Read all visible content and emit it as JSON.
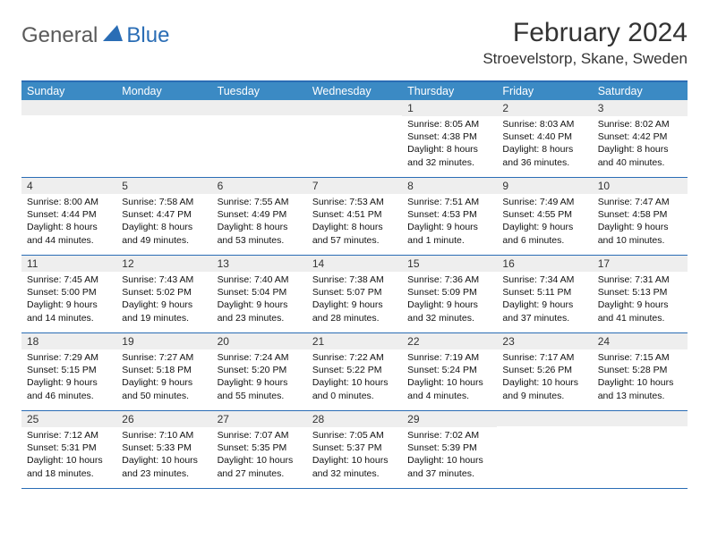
{
  "logo": {
    "general": "General",
    "blue": "Blue"
  },
  "title": "February 2024",
  "location": "Stroevelstorp, Skane, Sweden",
  "colors": {
    "header_bg": "#3b8ac4",
    "header_border": "#2a6db5",
    "daynum_bg": "#eeeeee",
    "text": "#111111"
  },
  "day_names": [
    "Sunday",
    "Monday",
    "Tuesday",
    "Wednesday",
    "Thursday",
    "Friday",
    "Saturday"
  ],
  "weeks": [
    [
      null,
      null,
      null,
      null,
      {
        "n": "1",
        "sr": "8:05 AM",
        "ss": "4:38 PM",
        "dl": "8 hours and 32 minutes."
      },
      {
        "n": "2",
        "sr": "8:03 AM",
        "ss": "4:40 PM",
        "dl": "8 hours and 36 minutes."
      },
      {
        "n": "3",
        "sr": "8:02 AM",
        "ss": "4:42 PM",
        "dl": "8 hours and 40 minutes."
      }
    ],
    [
      {
        "n": "4",
        "sr": "8:00 AM",
        "ss": "4:44 PM",
        "dl": "8 hours and 44 minutes."
      },
      {
        "n": "5",
        "sr": "7:58 AM",
        "ss": "4:47 PM",
        "dl": "8 hours and 49 minutes."
      },
      {
        "n": "6",
        "sr": "7:55 AM",
        "ss": "4:49 PM",
        "dl": "8 hours and 53 minutes."
      },
      {
        "n": "7",
        "sr": "7:53 AM",
        "ss": "4:51 PM",
        "dl": "8 hours and 57 minutes."
      },
      {
        "n": "8",
        "sr": "7:51 AM",
        "ss": "4:53 PM",
        "dl": "9 hours and 1 minute."
      },
      {
        "n": "9",
        "sr": "7:49 AM",
        "ss": "4:55 PM",
        "dl": "9 hours and 6 minutes."
      },
      {
        "n": "10",
        "sr": "7:47 AM",
        "ss": "4:58 PM",
        "dl": "9 hours and 10 minutes."
      }
    ],
    [
      {
        "n": "11",
        "sr": "7:45 AM",
        "ss": "5:00 PM",
        "dl": "9 hours and 14 minutes."
      },
      {
        "n": "12",
        "sr": "7:43 AM",
        "ss": "5:02 PM",
        "dl": "9 hours and 19 minutes."
      },
      {
        "n": "13",
        "sr": "7:40 AM",
        "ss": "5:04 PM",
        "dl": "9 hours and 23 minutes."
      },
      {
        "n": "14",
        "sr": "7:38 AM",
        "ss": "5:07 PM",
        "dl": "9 hours and 28 minutes."
      },
      {
        "n": "15",
        "sr": "7:36 AM",
        "ss": "5:09 PM",
        "dl": "9 hours and 32 minutes."
      },
      {
        "n": "16",
        "sr": "7:34 AM",
        "ss": "5:11 PM",
        "dl": "9 hours and 37 minutes."
      },
      {
        "n": "17",
        "sr": "7:31 AM",
        "ss": "5:13 PM",
        "dl": "9 hours and 41 minutes."
      }
    ],
    [
      {
        "n": "18",
        "sr": "7:29 AM",
        "ss": "5:15 PM",
        "dl": "9 hours and 46 minutes."
      },
      {
        "n": "19",
        "sr": "7:27 AM",
        "ss": "5:18 PM",
        "dl": "9 hours and 50 minutes."
      },
      {
        "n": "20",
        "sr": "7:24 AM",
        "ss": "5:20 PM",
        "dl": "9 hours and 55 minutes."
      },
      {
        "n": "21",
        "sr": "7:22 AM",
        "ss": "5:22 PM",
        "dl": "10 hours and 0 minutes."
      },
      {
        "n": "22",
        "sr": "7:19 AM",
        "ss": "5:24 PM",
        "dl": "10 hours and 4 minutes."
      },
      {
        "n": "23",
        "sr": "7:17 AM",
        "ss": "5:26 PM",
        "dl": "10 hours and 9 minutes."
      },
      {
        "n": "24",
        "sr": "7:15 AM",
        "ss": "5:28 PM",
        "dl": "10 hours and 13 minutes."
      }
    ],
    [
      {
        "n": "25",
        "sr": "7:12 AM",
        "ss": "5:31 PM",
        "dl": "10 hours and 18 minutes."
      },
      {
        "n": "26",
        "sr": "7:10 AM",
        "ss": "5:33 PM",
        "dl": "10 hours and 23 minutes."
      },
      {
        "n": "27",
        "sr": "7:07 AM",
        "ss": "5:35 PM",
        "dl": "10 hours and 27 minutes."
      },
      {
        "n": "28",
        "sr": "7:05 AM",
        "ss": "5:37 PM",
        "dl": "10 hours and 32 minutes."
      },
      {
        "n": "29",
        "sr": "7:02 AM",
        "ss": "5:39 PM",
        "dl": "10 hours and 37 minutes."
      },
      null,
      null
    ]
  ],
  "labels": {
    "sunrise": "Sunrise:",
    "sunset": "Sunset:",
    "daylight": "Daylight:"
  }
}
